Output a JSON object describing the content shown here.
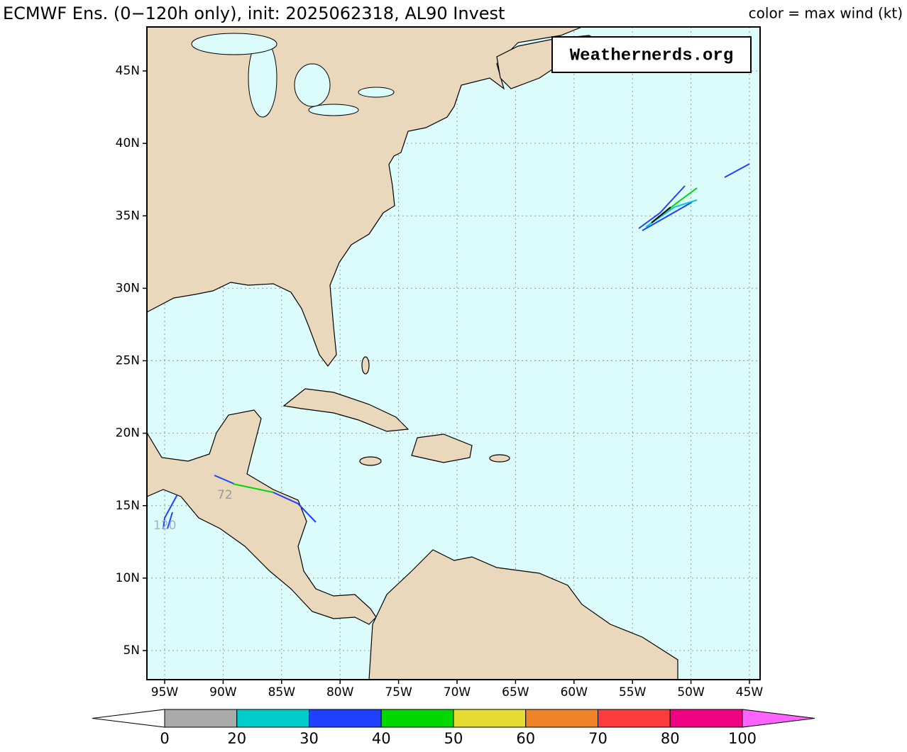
{
  "header": {
    "title": "ECMWF Ens. (0−120h only), init: 2025062318, AL90 Invest",
    "legend_title": "color = max wind (kt)"
  },
  "watermark": "Weathernerds.org",
  "map": {
    "lat_labels": [
      "45N",
      "40N",
      "35N",
      "30N",
      "25N",
      "20N",
      "15N",
      "10N",
      "5N"
    ],
    "lon_labels": [
      "95W",
      "90W",
      "85W",
      "80W",
      "75W",
      "70W",
      "65W",
      "60W",
      "55W",
      "50W",
      "45W"
    ],
    "track_labels": [
      "72",
      "120"
    ]
  },
  "colorbar": {
    "ticks": [
      0,
      20,
      30,
      40,
      50,
      60,
      70,
      80,
      100
    ],
    "colors": [
      "#aaaaaa",
      "#00cccc",
      "#2040ff",
      "#00d800",
      "#e6dc32",
      "#f08228",
      "#fa3c3c",
      "#f00082"
    ],
    "under_color": "#ffffff",
    "over_color": "#ff64ff"
  }
}
